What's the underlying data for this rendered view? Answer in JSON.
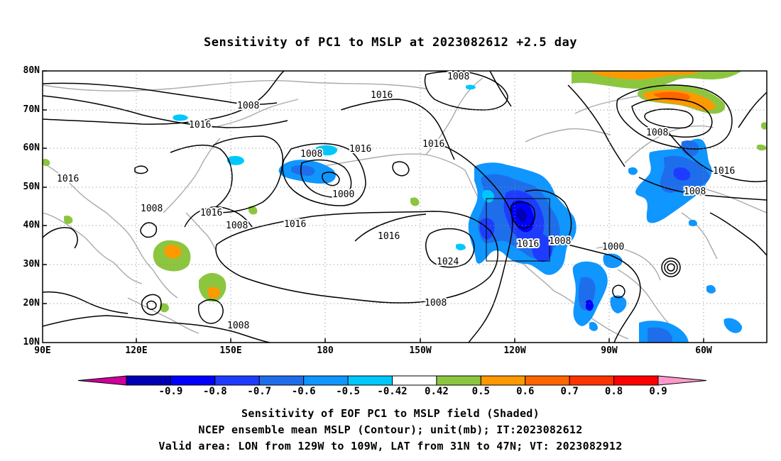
{
  "title": "Sensitivity of PC1 to MSLP at 2023082612 +2.5 day",
  "lat_labels": [
    "80N",
    "70N",
    "60N",
    "50N",
    "40N",
    "30N",
    "20N",
    "10N"
  ],
  "lon_labels": [
    "90E",
    "120E",
    "150E",
    "180",
    "150W",
    "120W",
    "90W",
    "60W"
  ],
  "contour_labels": [
    "1008",
    "1016",
    "1016",
    "1008",
    "1016",
    "1000",
    "1008",
    "1016",
    "1008",
    "1016",
    "1008",
    "1016",
    "1016",
    "1024",
    "1016",
    "1008",
    "1008",
    "1016",
    "1008",
    "1000",
    "1008",
    "1016",
    "1008"
  ],
  "colorbar": {
    "ticks": [
      "-0.9",
      "-0.8",
      "-0.7",
      "-0.6",
      "-0.5",
      "-0.42",
      "0.42",
      "0.5",
      "0.6",
      "0.7",
      "0.8",
      "0.9"
    ],
    "colors": [
      "#cc0099",
      "#0000b3",
      "#0000ff",
      "#1e3cff",
      "#1e6eeb",
      "#0f96ff",
      "#00c8ff",
      "#ffffff",
      "#8cc63f",
      "#ff9900",
      "#ff6600",
      "#ff3300",
      "#ff0000",
      "#ff99cc"
    ]
  },
  "captions": [
    "Sensitivity of EOF PC1 to MSLP field (Shaded)",
    "NCEP ensemble mean MSLP (Contour); unit(mb); IT:2023082612",
    "Valid area: LON from 129W to 109W, LAT from 31N to 47N; VT: 2023082912"
  ]
}
